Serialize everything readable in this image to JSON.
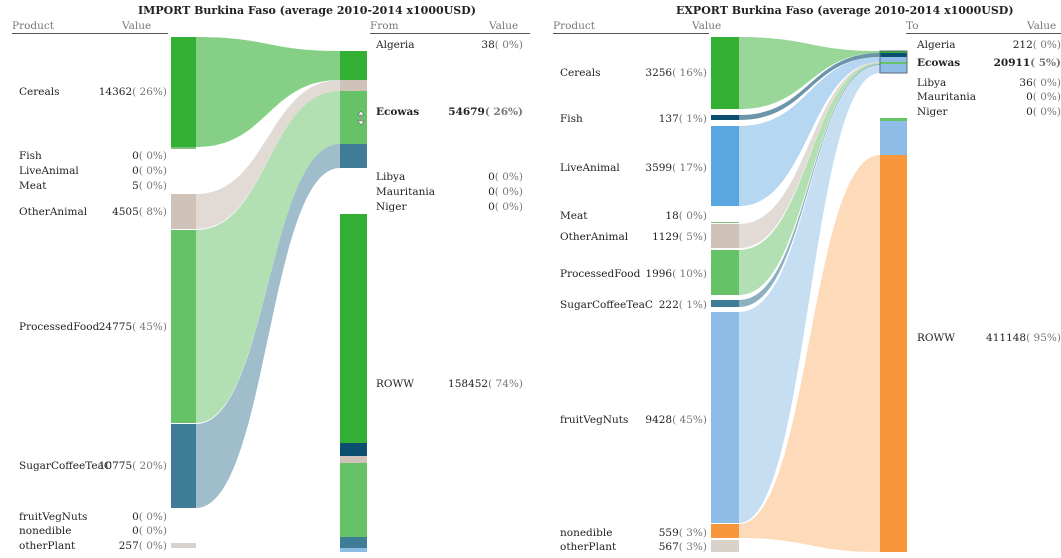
{
  "chart_data": [
    {
      "type": "sankey",
      "title": "IMPORT Burkina Faso (average 2010-2014 x1000USD)",
      "product_header": "Product",
      "value_header": "Value",
      "partner_header": "From",
      "partner_value_header": "Value",
      "products": [
        {
          "name": "Cereals",
          "value": "14362",
          "pct": "( 26%)",
          "color": "#33b033"
        },
        {
          "name": "Fish",
          "value": "0",
          "pct": "( 0%)",
          "color": "#0a4f70"
        },
        {
          "name": "LiveAnimal",
          "value": "0",
          "pct": "( 0%)",
          "color": "#5aa6e0"
        },
        {
          "name": "Meat",
          "value": "5",
          "pct": "( 0%)",
          "color": "#7cc07c"
        },
        {
          "name": "OtherAnimal",
          "value": "4505",
          "pct": "( 8%)",
          "color": "#cfc3b9"
        },
        {
          "name": "ProcessedFood",
          "value": "24775",
          "pct": "( 45%)",
          "color": "#66c266"
        },
        {
          "name": "SugarCoffeeTeaC",
          "value": "10775",
          "pct": "( 20%)",
          "color": "#3f7c96"
        },
        {
          "name": "fruitVegNuts",
          "value": "0",
          "pct": "( 0%)",
          "color": "#8dbde6"
        },
        {
          "name": "nonedible",
          "value": "0",
          "pct": "( 0%)",
          "color": "#f7963a"
        },
        {
          "name": "otherPlant",
          "value": "257",
          "pct": "( 0%)",
          "color": "#d9d2cb"
        }
      ],
      "partners": [
        {
          "name": "Algeria",
          "value": "38",
          "pct": "( 0%)",
          "bold": false
        },
        {
          "name": "Ecowas",
          "value": "54679",
          "pct": "( 26%)",
          "bold": true
        },
        {
          "name": "Libya",
          "value": "0",
          "pct": "( 0%)",
          "bold": false
        },
        {
          "name": "Mauritania",
          "value": "0",
          "pct": "( 0%)",
          "bold": false
        },
        {
          "name": "Niger",
          "value": "0",
          "pct": "( 0%)",
          "bold": false
        },
        {
          "name": "ROWW",
          "value": "158452",
          "pct": "( 74%)",
          "bold": false
        }
      ]
    },
    {
      "type": "sankey",
      "title": "EXPORT Burkina Faso (average 2010-2014 x1000USD)",
      "product_header": "Product",
      "value_header": "Value",
      "partner_header": "To",
      "partner_value_header": "Value",
      "products": [
        {
          "name": "Cereals",
          "value": "3256",
          "pct": "( 16%)",
          "color": "#33b033"
        },
        {
          "name": "Fish",
          "value": "137",
          "pct": "( 1%)",
          "color": "#0a4f70"
        },
        {
          "name": "LiveAnimal",
          "value": "3599",
          "pct": "( 17%)",
          "color": "#5aa6e0"
        },
        {
          "name": "Meat",
          "value": "18",
          "pct": "( 0%)",
          "color": "#7cc07c"
        },
        {
          "name": "OtherAnimal",
          "value": "1129",
          "pct": "( 5%)",
          "color": "#cfc3b9"
        },
        {
          "name": "ProcessedFood",
          "value": "1996",
          "pct": "( 10%)",
          "color": "#66c266"
        },
        {
          "name": "SugarCoffeeTeaC",
          "value": "222",
          "pct": "( 1%)",
          "color": "#3f7c96"
        },
        {
          "name": "fruitVegNuts",
          "value": "9428",
          "pct": "( 45%)",
          "color": "#8dbde6"
        },
        {
          "name": "nonedible",
          "value": "559",
          "pct": "( 3%)",
          "color": "#f7963a"
        },
        {
          "name": "otherPlant",
          "value": "567",
          "pct": "( 3%)",
          "color": "#d9d2cb"
        }
      ],
      "partners": [
        {
          "name": "Algeria",
          "value": "212",
          "pct": "( 0%)",
          "bold": false
        },
        {
          "name": "Ecowas",
          "value": "20911",
          "pct": "( 5%)",
          "bold": true
        },
        {
          "name": "Libya",
          "value": "36",
          "pct": "( 0%)",
          "bold": false
        },
        {
          "name": "Mauritania",
          "value": "0",
          "pct": "( 0%)",
          "bold": false
        },
        {
          "name": "Niger",
          "value": "0",
          "pct": "( 0%)",
          "bold": false
        },
        {
          "name": "ROWW",
          "value": "411148",
          "pct": "( 95%)",
          "bold": false
        }
      ]
    }
  ]
}
